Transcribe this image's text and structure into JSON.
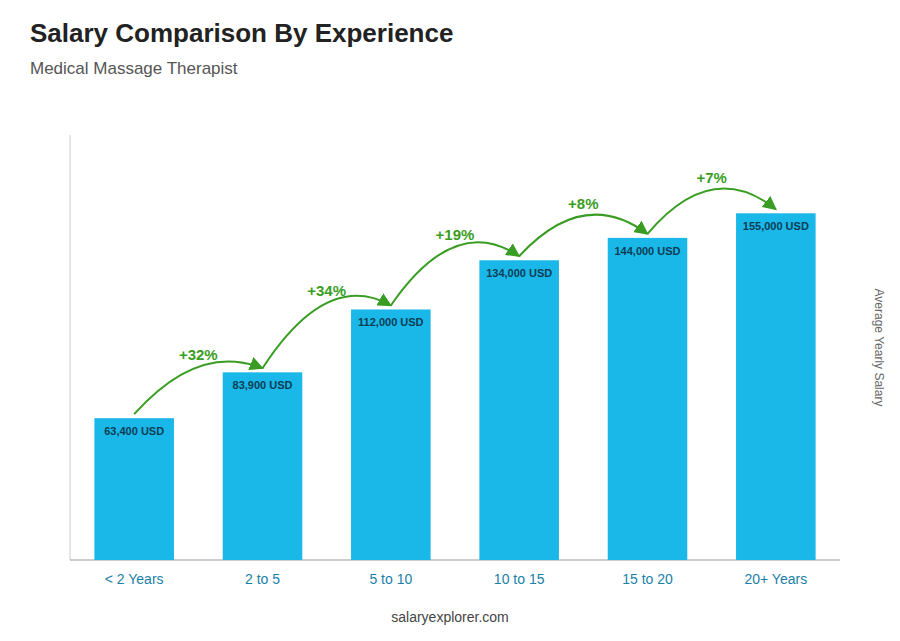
{
  "chart_data": {
    "type": "bar",
    "title": "Salary Comparison By Experience",
    "subtitle": "Medical Massage Therapist",
    "ylabel": "Average Yearly Salary",
    "source": "salaryexplorer.com",
    "categories": [
      "< 2 Years",
      "2 to 5",
      "5 to 10",
      "10 to 15",
      "15 to 20",
      "20+ Years"
    ],
    "values": [
      63400,
      83900,
      112000,
      134000,
      144000,
      155000
    ],
    "value_labels": [
      "63,400 USD",
      "83,900 USD",
      "112,000 USD",
      "134,000 USD",
      "144,000 USD",
      "155,000 USD"
    ],
    "data_labels": true,
    "annotations": [
      "+32%",
      "+34%",
      "+19%",
      "+8%",
      "+7%"
    ],
    "color": "#1ab8e8",
    "ylim": [
      0,
      190000
    ],
    "tick_labels": "x",
    "grid": false
  }
}
